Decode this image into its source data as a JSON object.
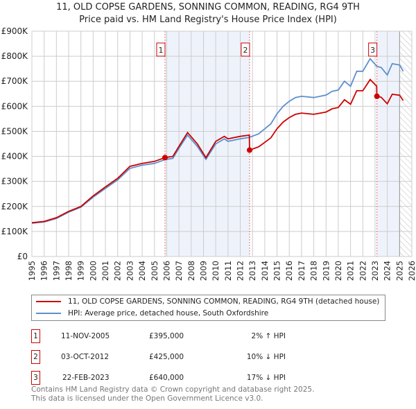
{
  "chart_data": {
    "type": "line",
    "title": "11, OLD COPSE GARDENS, SONNING COMMON, READING, RG4 9TH",
    "subtitle": "Price paid vs. HM Land Registry's House Price Index (HPI)",
    "xlim": [
      1995,
      2026
    ],
    "ylim": [
      0,
      900000
    ],
    "x_ticks": [
      "1995",
      "1996",
      "1997",
      "1998",
      "1999",
      "2000",
      "2001",
      "2002",
      "2003",
      "2004",
      "2005",
      "2006",
      "2007",
      "2008",
      "2009",
      "2010",
      "2011",
      "2012",
      "2013",
      "2014",
      "2015",
      "2016",
      "2017",
      "2018",
      "2019",
      "2020",
      "2021",
      "2022",
      "2023",
      "2024",
      "2025",
      "2026"
    ],
    "y_ticks": [
      "£0",
      "£100K",
      "£200K",
      "£300K",
      "£400K",
      "£500K",
      "£600K",
      "£700K",
      "£800K",
      "£900K"
    ],
    "grid": true,
    "data_end": 2025.0,
    "series": [
      {
        "name": "11, OLD COPSE GARDENS, SONNING COMMON, READING, RG4 9TH (detached house)",
        "color": "#cc0000",
        "x": [
          1995,
          1996,
          1997,
          1998,
          1999,
          2000,
          2001,
          2002,
          2003,
          2004,
          2005,
          2005.86,
          2006.5,
          2007,
          2007.7,
          2008.5,
          2009.2,
          2010,
          2010.7,
          2011,
          2012,
          2012.74,
          2012.76,
          2013.5,
          2014,
          2014.5,
          2015,
          2015.5,
          2016,
          2016.5,
          2017,
          2018,
          2019,
          2019.5,
          2020,
          2020.5,
          2021,
          2021.5,
          2022,
          2022.6,
          2023.13,
          2023.15,
          2023.5,
          2024,
          2024.4,
          2025,
          2025.3
        ],
        "y": [
          135000,
          140000,
          155000,
          180000,
          200000,
          242000,
          278000,
          312000,
          360000,
          372000,
          380000,
          395000,
          400000,
          440000,
          495000,
          450000,
          395000,
          460000,
          480000,
          470000,
          480000,
          485000,
          425000,
          438000,
          456000,
          474000,
          510000,
          537000,
          555000,
          568000,
          573000,
          568000,
          577000,
          590000,
          595000,
          626000,
          608000,
          662000,
          662000,
          707000,
          680000,
          640000,
          636000,
          610000,
          648000,
          644000,
          623000
        ]
      },
      {
        "name": "HPI: Average price, detached house, South Oxfordshire",
        "color": "#5b8fd0",
        "x": [
          1995,
          1996,
          1997,
          1998,
          1999,
          2000,
          2001,
          2002,
          2003,
          2004,
          2005,
          2005.86,
          2006.5,
          2007,
          2007.7,
          2008.5,
          2009.2,
          2010,
          2010.7,
          2011,
          2012,
          2012.75,
          2013.5,
          2014,
          2014.5,
          2015,
          2015.5,
          2016,
          2016.5,
          2017,
          2018,
          2019,
          2019.5,
          2020,
          2020.5,
          2021,
          2021.5,
          2022,
          2022.6,
          2023.14,
          2023.5,
          2024,
          2024.4,
          2025,
          2025.3
        ],
        "y": [
          133000,
          138000,
          152000,
          177000,
          197000,
          237000,
          272000,
          306000,
          352000,
          365000,
          372000,
          387000,
          392000,
          432000,
          485000,
          440000,
          388000,
          450000,
          470000,
          460000,
          470000,
          476000,
          490000,
          510000,
          530000,
          570000,
          600000,
          620000,
          635000,
          640000,
          635000,
          645000,
          660000,
          665000,
          700000,
          680000,
          740000,
          740000,
          790000,
          760000,
          755000,
          725000,
          770000,
          765000,
          740000
        ]
      }
    ],
    "annotations": [
      {
        "label": "1",
        "x": 2005.86,
        "date": "11-NOV-2005",
        "price": "£395,000",
        "value": 395000,
        "hpi": "2% ↑ HPI"
      },
      {
        "label": "2",
        "x": 2012.76,
        "date": "03-OCT-2012",
        "price": "£425,000",
        "value": 425000,
        "hpi": "10% ↓ HPI"
      },
      {
        "label": "3",
        "x": 2023.15,
        "date": "22-FEB-2023",
        "price": "£640,000",
        "value": 640000,
        "hpi": "17% ↓ HPI"
      }
    ]
  },
  "legend": {
    "property": "11, OLD COPSE GARDENS, SONNING COMMON, READING, RG4 9TH (detached house)",
    "hpi": "HPI: Average price, detached house, South Oxfordshire"
  },
  "footer": {
    "line1": "Contains HM Land Registry data © Crown copyright and database right 2025.",
    "line2": "This data is licensed under the Open Government Licence v3.0."
  }
}
